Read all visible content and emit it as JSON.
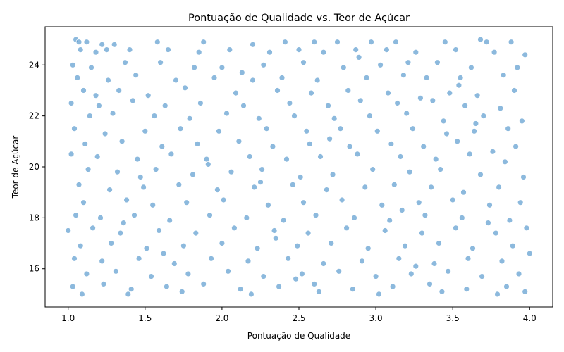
{
  "chart_data": {
    "type": "scatter",
    "title": "Pontuação de Qualidade vs. Teor de Açúcar",
    "xlabel": "Pontuação de Qualidade",
    "ylabel": "Teor de Açúcar",
    "xlim": [
      0.85,
      4.15
    ],
    "ylim": [
      14.5,
      25.5
    ],
    "x_ticks": [
      "1.0",
      "1.5",
      "2.0",
      "2.5",
      "3.0",
      "3.5",
      "4.0"
    ],
    "y_ticks": [
      "16",
      "18",
      "20",
      "22",
      "24"
    ],
    "grid": false,
    "marker_color": "#5b9bcf",
    "marker_edge_color": "#ffffff",
    "points": [
      [
        1.05,
        25.0
      ],
      [
        1.07,
        24.9
      ],
      [
        1.12,
        24.9
      ],
      [
        1.22,
        24.8
      ],
      [
        1.3,
        24.8
      ],
      [
        1.58,
        24.9
      ],
      [
        1.88,
        24.9
      ],
      [
        2.2,
        24.8
      ],
      [
        2.41,
        24.9
      ],
      [
        2.6,
        24.9
      ],
      [
        2.75,
        24.9
      ],
      [
        2.97,
        24.9
      ],
      [
        3.13,
        24.9
      ],
      [
        3.45,
        24.9
      ],
      [
        3.68,
        25.0
      ],
      [
        3.72,
        24.9
      ],
      [
        3.88,
        24.9
      ],
      [
        1.08,
        24.6
      ],
      [
        1.18,
        24.5
      ],
      [
        1.25,
        24.6
      ],
      [
        1.4,
        24.6
      ],
      [
        1.65,
        24.6
      ],
      [
        1.85,
        24.5
      ],
      [
        2.05,
        24.6
      ],
      [
        2.31,
        24.5
      ],
      [
        2.5,
        24.6
      ],
      [
        2.66,
        24.5
      ],
      [
        2.87,
        24.6
      ],
      [
        3.07,
        24.6
      ],
      [
        3.26,
        24.5
      ],
      [
        3.52,
        24.6
      ],
      [
        3.77,
        24.5
      ],
      [
        3.97,
        24.4
      ],
      [
        1.03,
        24.0
      ],
      [
        1.15,
        23.9
      ],
      [
        1.37,
        24.1
      ],
      [
        1.6,
        24.1
      ],
      [
        1.82,
        23.9
      ],
      [
        2.0,
        23.9
      ],
      [
        2.27,
        24.0
      ],
      [
        2.53,
        24.1
      ],
      [
        2.79,
        23.9
      ],
      [
        3.03,
        24.0
      ],
      [
        3.21,
        24.1
      ],
      [
        3.4,
        24.1
      ],
      [
        3.62,
        23.9
      ],
      [
        3.92,
        23.9
      ],
      [
        1.06,
        23.5
      ],
      [
        1.26,
        23.4
      ],
      [
        1.44,
        23.6
      ],
      [
        1.7,
        23.4
      ],
      [
        1.95,
        23.5
      ],
      [
        2.2,
        23.4
      ],
      [
        2.39,
        23.5
      ],
      [
        2.62,
        23.4
      ],
      [
        2.94,
        23.5
      ],
      [
        3.18,
        23.6
      ],
      [
        3.33,
        23.5
      ],
      [
        3.55,
        23.5
      ],
      [
        3.83,
        23.6
      ],
      [
        1.1,
        23.0
      ],
      [
        1.33,
        23.0
      ],
      [
        1.52,
        22.8
      ],
      [
        1.76,
        23.1
      ],
      [
        2.09,
        22.9
      ],
      [
        2.36,
        23.0
      ],
      [
        2.58,
        22.9
      ],
      [
        2.82,
        23.0
      ],
      [
        3.08,
        22.9
      ],
      [
        3.29,
        22.7
      ],
      [
        3.48,
        22.9
      ],
      [
        3.66,
        22.8
      ],
      [
        3.9,
        23.0
      ],
      [
        1.02,
        22.5
      ],
      [
        1.2,
        22.4
      ],
      [
        1.42,
        22.6
      ],
      [
        1.63,
        22.4
      ],
      [
        1.86,
        22.5
      ],
      [
        2.14,
        22.4
      ],
      [
        2.44,
        22.5
      ],
      [
        2.69,
        22.4
      ],
      [
        2.9,
        22.6
      ],
      [
        3.14,
        22.5
      ],
      [
        3.37,
        22.6
      ],
      [
        3.58,
        22.4
      ],
      [
        3.81,
        22.3
      ],
      [
        1.14,
        22.0
      ],
      [
        1.29,
        22.1
      ],
      [
        1.56,
        22.0
      ],
      [
        1.79,
        21.9
      ],
      [
        2.03,
        22.1
      ],
      [
        2.24,
        21.9
      ],
      [
        2.47,
        22.0
      ],
      [
        2.73,
        21.9
      ],
      [
        2.96,
        22.0
      ],
      [
        3.2,
        22.1
      ],
      [
        3.44,
        21.8
      ],
      [
        3.7,
        22.0
      ],
      [
        3.95,
        21.8
      ],
      [
        1.04,
        21.5
      ],
      [
        1.24,
        21.3
      ],
      [
        1.5,
        21.4
      ],
      [
        1.73,
        21.5
      ],
      [
        1.98,
        21.4
      ],
      [
        2.29,
        21.5
      ],
      [
        2.55,
        21.4
      ],
      [
        2.77,
        21.5
      ],
      [
        3.01,
        21.4
      ],
      [
        3.24,
        21.5
      ],
      [
        3.46,
        21.3
      ],
      [
        3.64,
        21.4
      ],
      [
        3.86,
        21.5
      ],
      [
        1.11,
        20.9
      ],
      [
        1.35,
        21.0
      ],
      [
        1.61,
        20.8
      ],
      [
        1.84,
        20.9
      ],
      [
        2.11,
        21.0
      ],
      [
        2.33,
        20.8
      ],
      [
        2.57,
        20.9
      ],
      [
        2.83,
        20.8
      ],
      [
        3.1,
        20.9
      ],
      [
        3.31,
        20.8
      ],
      [
        3.53,
        21.0
      ],
      [
        3.76,
        20.6
      ],
      [
        3.91,
        20.8
      ],
      [
        1.02,
        20.5
      ],
      [
        1.19,
        20.4
      ],
      [
        1.45,
        20.3
      ],
      [
        1.67,
        20.5
      ],
      [
        1.9,
        20.3
      ],
      [
        2.18,
        20.4
      ],
      [
        2.42,
        20.3
      ],
      [
        2.64,
        20.4
      ],
      [
        2.88,
        20.5
      ],
      [
        3.16,
        20.4
      ],
      [
        3.39,
        20.3
      ],
      [
        3.61,
        20.5
      ],
      [
        3.84,
        20.2
      ],
      [
        1.13,
        19.9
      ],
      [
        1.32,
        19.8
      ],
      [
        1.57,
        19.9
      ],
      [
        1.81,
        19.7
      ],
      [
        2.06,
        19.8
      ],
      [
        2.26,
        19.9
      ],
      [
        2.51,
        19.6
      ],
      [
        2.72,
        19.7
      ],
      [
        2.98,
        19.9
      ],
      [
        3.22,
        19.8
      ],
      [
        3.42,
        19.9
      ],
      [
        3.68,
        19.7
      ],
      [
        3.96,
        19.6
      ],
      [
        1.07,
        19.3
      ],
      [
        1.27,
        19.1
      ],
      [
        1.49,
        19.2
      ],
      [
        1.72,
        19.3
      ],
      [
        1.97,
        19.1
      ],
      [
        2.21,
        19.2
      ],
      [
        2.46,
        19.3
      ],
      [
        2.68,
        19.1
      ],
      [
        2.93,
        19.2
      ],
      [
        3.12,
        19.3
      ],
      [
        3.36,
        19.2
      ],
      [
        3.57,
        19.0
      ],
      [
        3.8,
        19.2
      ],
      [
        1.1,
        18.6
      ],
      [
        1.38,
        18.7
      ],
      [
        1.55,
        18.5
      ],
      [
        1.77,
        18.6
      ],
      [
        2.01,
        18.7
      ],
      [
        2.3,
        18.5
      ],
      [
        2.53,
        18.6
      ],
      [
        2.78,
        18.7
      ],
      [
        3.04,
        18.5
      ],
      [
        3.28,
        18.6
      ],
      [
        3.5,
        18.7
      ],
      [
        3.74,
        18.5
      ],
      [
        3.94,
        18.6
      ],
      [
        1.05,
        18.1
      ],
      [
        1.21,
        18.0
      ],
      [
        1.43,
        18.1
      ],
      [
        1.66,
        17.9
      ],
      [
        1.92,
        18.1
      ],
      [
        2.16,
        18.0
      ],
      [
        2.4,
        17.9
      ],
      [
        2.61,
        18.1
      ],
      [
        2.86,
        18.0
      ],
      [
        3.09,
        17.9
      ],
      [
        3.32,
        18.1
      ],
      [
        3.56,
        18.0
      ],
      [
        3.87,
        17.9
      ],
      [
        1.0,
        17.5
      ],
      [
        1.16,
        17.6
      ],
      [
        1.34,
        17.4
      ],
      [
        1.59,
        17.5
      ],
      [
        1.83,
        17.4
      ],
      [
        2.08,
        17.6
      ],
      [
        2.34,
        17.5
      ],
      [
        2.56,
        17.4
      ],
      [
        2.81,
        17.6
      ],
      [
        3.06,
        17.5
      ],
      [
        3.3,
        17.4
      ],
      [
        3.52,
        17.6
      ],
      [
        3.78,
        17.4
      ],
      [
        3.98,
        17.6
      ],
      [
        1.08,
        16.9
      ],
      [
        1.28,
        17.0
      ],
      [
        1.51,
        16.8
      ],
      [
        1.75,
        16.9
      ],
      [
        2.0,
        17.0
      ],
      [
        2.23,
        16.8
      ],
      [
        2.49,
        16.9
      ],
      [
        2.71,
        17.0
      ],
      [
        2.95,
        16.8
      ],
      [
        3.19,
        16.9
      ],
      [
        3.41,
        17.0
      ],
      [
        3.63,
        16.8
      ],
      [
        3.89,
        16.9
      ],
      [
        1.04,
        16.4
      ],
      [
        1.22,
        16.3
      ],
      [
        1.46,
        16.4
      ],
      [
        1.69,
        16.2
      ],
      [
        1.93,
        16.4
      ],
      [
        2.17,
        16.3
      ],
      [
        2.43,
        16.4
      ],
      [
        2.66,
        16.2
      ],
      [
        2.91,
        16.3
      ],
      [
        3.15,
        16.4
      ],
      [
        3.38,
        16.2
      ],
      [
        3.6,
        16.4
      ],
      [
        3.82,
        16.3
      ],
      [
        4.0,
        16.6
      ],
      [
        1.12,
        15.8
      ],
      [
        1.31,
        15.9
      ],
      [
        1.54,
        15.7
      ],
      [
        1.78,
        15.8
      ],
      [
        2.04,
        15.9
      ],
      [
        2.27,
        15.7
      ],
      [
        2.52,
        15.8
      ],
      [
        2.76,
        15.9
      ],
      [
        3.0,
        15.7
      ],
      [
        3.23,
        15.8
      ],
      [
        3.47,
        15.9
      ],
      [
        3.69,
        15.7
      ],
      [
        3.93,
        15.8
      ],
      [
        1.03,
        15.3
      ],
      [
        1.23,
        15.4
      ],
      [
        1.41,
        15.2
      ],
      [
        1.64,
        15.3
      ],
      [
        1.88,
        15.4
      ],
      [
        2.12,
        15.2
      ],
      [
        2.37,
        15.3
      ],
      [
        2.6,
        15.4
      ],
      [
        2.85,
        15.2
      ],
      [
        3.11,
        15.3
      ],
      [
        3.35,
        15.4
      ],
      [
        3.59,
        15.2
      ],
      [
        3.85,
        15.3
      ],
      [
        1.09,
        15.0
      ],
      [
        1.39,
        15.0
      ],
      [
        1.74,
        15.1
      ],
      [
        2.19,
        15.0
      ],
      [
        2.63,
        15.1
      ],
      [
        3.02,
        15.0
      ],
      [
        3.43,
        15.1
      ],
      [
        3.79,
        15.0
      ],
      [
        3.97,
        15.1
      ],
      [
        1.18,
        22.8
      ],
      [
        1.47,
        19.6
      ],
      [
        1.62,
        16.6
      ],
      [
        2.13,
        23.7
      ],
      [
        2.35,
        17.2
      ],
      [
        2.7,
        21.1
      ],
      [
        3.17,
        18.3
      ],
      [
        3.54,
        23.2
      ],
      [
        3.73,
        17.8
      ],
      [
        2.48,
        15.6
      ],
      [
        1.91,
        20.1
      ],
      [
        2.89,
        24.3
      ],
      [
        3.26,
        16.1
      ],
      [
        1.36,
        17.8
      ],
      [
        2.25,
        19.4
      ],
      [
        3.65,
        21.7
      ]
    ]
  }
}
